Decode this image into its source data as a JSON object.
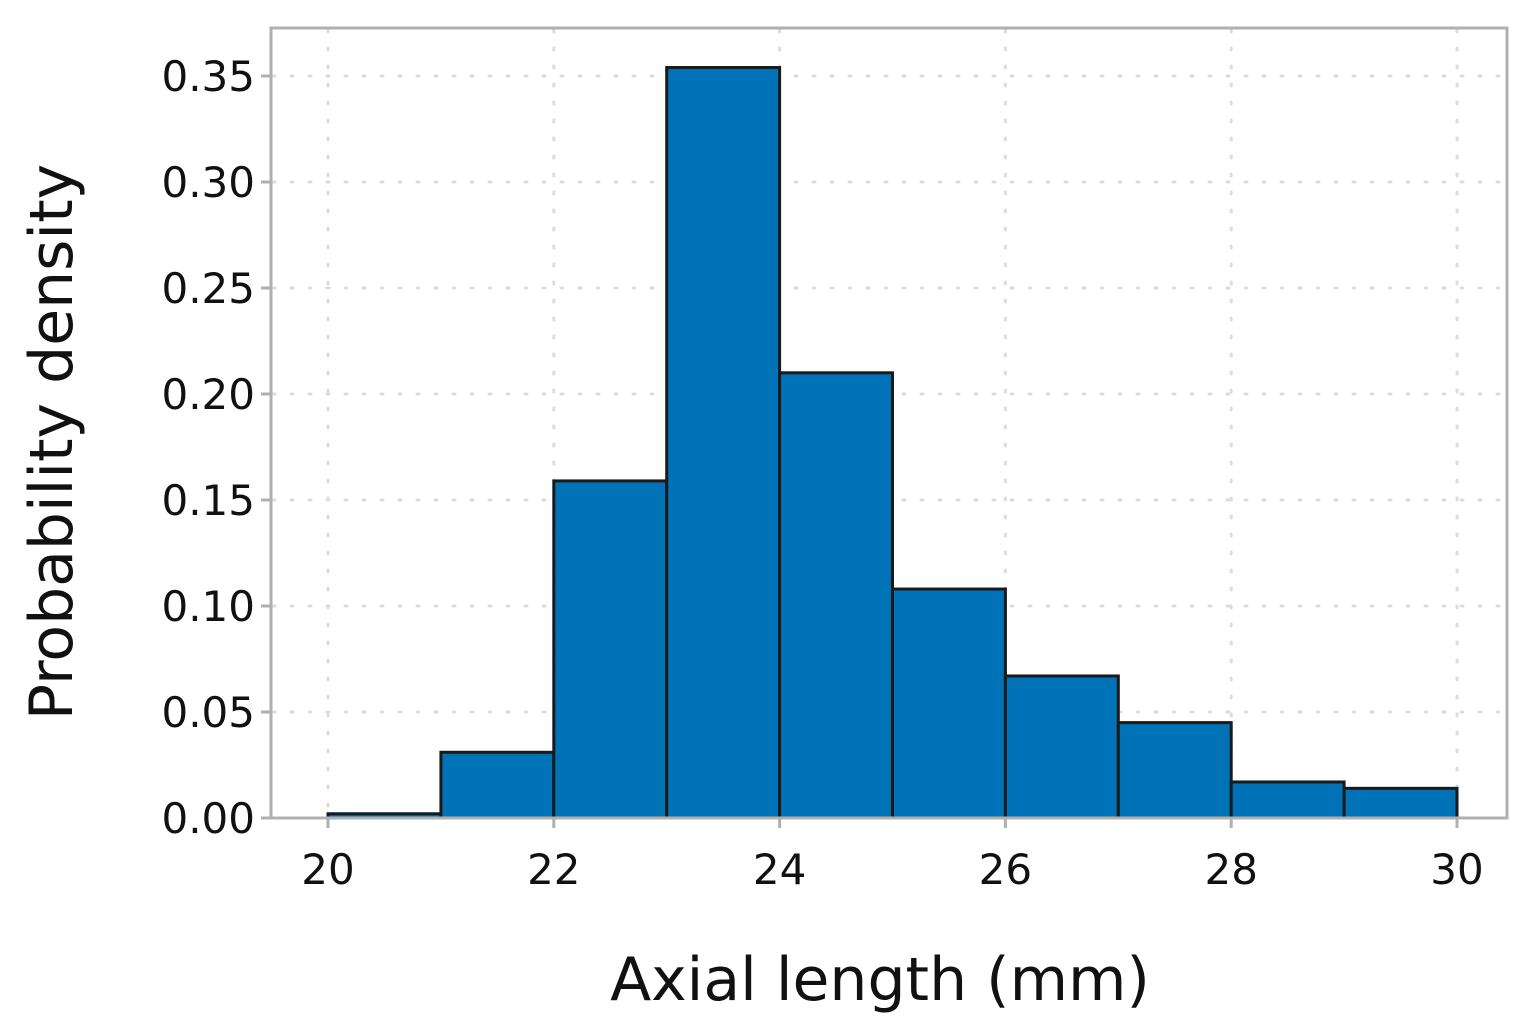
{
  "chart_data": {
    "type": "bar",
    "title": "",
    "xlabel": "Axial length (mm)",
    "ylabel": "Probability density",
    "bin_edges": [
      20,
      21,
      22,
      23,
      24,
      25,
      26,
      27,
      28,
      29,
      30
    ],
    "values": [
      0.002,
      0.031,
      0.159,
      0.354,
      0.21,
      0.108,
      0.067,
      0.045,
      0.017,
      0.014
    ],
    "xlim": [
      19.5,
      30.5
    ],
    "ylim": [
      0,
      0.37
    ],
    "xticks": [
      20,
      22,
      24,
      26,
      28,
      30
    ],
    "xtick_labels": [
      "20",
      "22",
      "24",
      "26",
      "28",
      "30"
    ],
    "yticks": [
      0.0,
      0.05,
      0.1,
      0.15,
      0.2,
      0.25,
      0.3,
      0.35
    ],
    "ytick_labels": [
      "0.00",
      "0.05",
      "0.10",
      "0.15",
      "0.20",
      "0.25",
      "0.30",
      "0.35"
    ],
    "grid": true,
    "grid_style": "dotted",
    "bar_color": "#0072B8",
    "bar_edge_color": "#1a1a1a",
    "frame_color": "#b0b0b0",
    "grid_color": "#dcdcdc"
  }
}
